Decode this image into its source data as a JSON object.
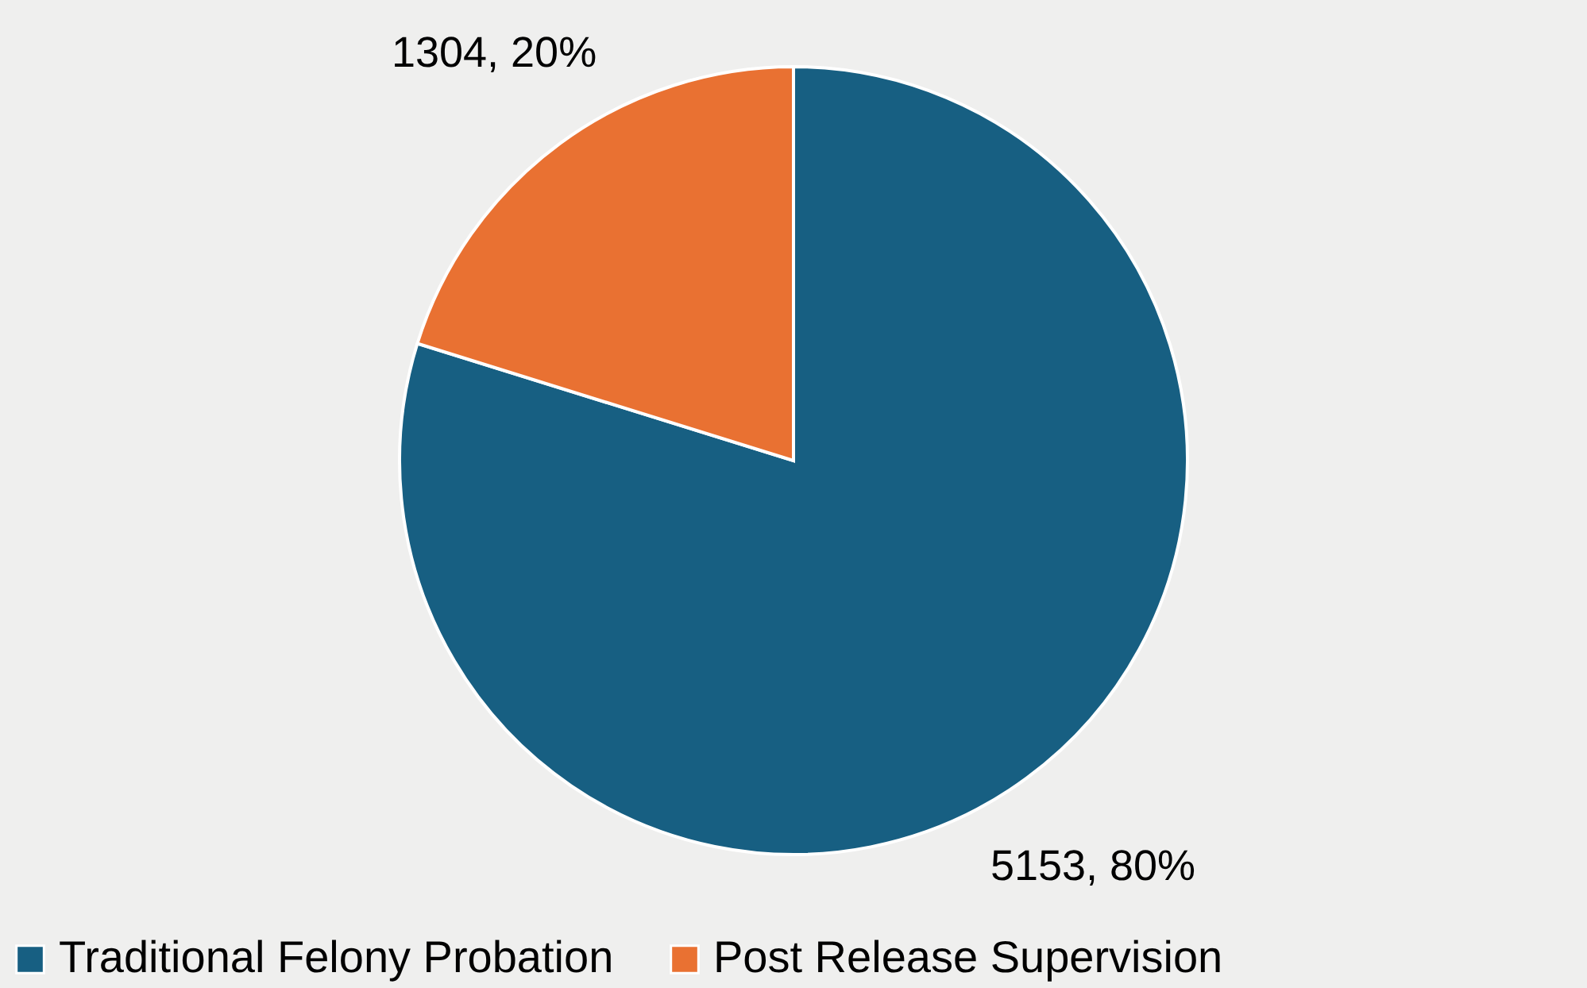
{
  "chart_data": {
    "type": "pie",
    "categories": [
      "Traditional Felony Probation",
      "Post Release Supervision"
    ],
    "values": [
      5153,
      1304
    ],
    "colors": [
      "#175f82",
      "#e97132"
    ],
    "value_labels": [
      "5153, 80%",
      "1304, 20%"
    ],
    "legend": "bottom"
  }
}
